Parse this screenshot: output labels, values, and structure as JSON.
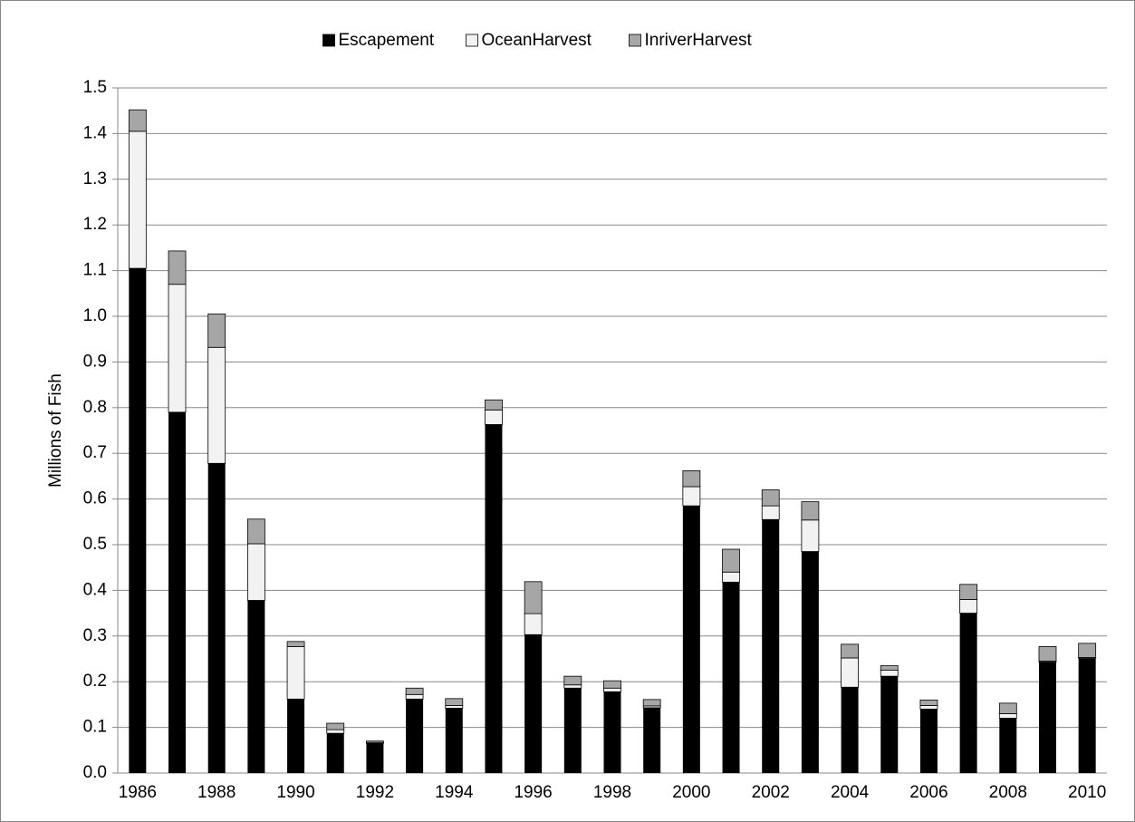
{
  "chart_data": {
    "type": "stacked-bar",
    "y_label": "Millions of Fish",
    "categories": [
      "1986",
      null,
      "1988",
      null,
      "1990",
      null,
      "1992",
      null,
      "1994",
      null,
      "1996",
      null,
      "1998",
      null,
      "2000",
      null,
      "2002",
      null,
      "2004",
      null,
      "2006",
      null,
      "2008",
      null,
      "2010"
    ],
    "series": [
      {
        "name": "Escapement",
        "color": "#000000",
        "values": [
          1.105,
          0.79,
          0.678,
          0.378,
          0.162,
          0.087,
          0.065,
          0.162,
          0.142,
          0.763,
          0.303,
          0.186,
          0.178,
          0.143,
          0.585,
          0.418,
          0.555,
          0.485,
          0.188,
          0.212,
          0.14,
          0.35,
          0.12,
          0.243,
          0.251
        ]
      },
      {
        "name": "OceanHarvest",
        "color": "#f2f2f2",
        "values": [
          0.3,
          0.28,
          0.254,
          0.124,
          0.115,
          0.008,
          0.002,
          0.01,
          0.006,
          0.032,
          0.046,
          0.007,
          0.008,
          0.004,
          0.042,
          0.022,
          0.03,
          0.069,
          0.064,
          0.013,
          0.008,
          0.03,
          0.01,
          0.002,
          0.002
        ]
      },
      {
        "name": "InriverHarvest",
        "color": "#a6a6a6",
        "values": [
          0.047,
          0.073,
          0.073,
          0.054,
          0.011,
          0.014,
          0.003,
          0.014,
          0.015,
          0.022,
          0.07,
          0.019,
          0.016,
          0.014,
          0.035,
          0.05,
          0.035,
          0.04,
          0.03,
          0.01,
          0.012,
          0.033,
          0.023,
          0.032,
          0.031
        ]
      }
    ],
    "ylim": [
      0,
      1.5
    ],
    "yticks": [
      {
        "value": 0,
        "label": "0.0"
      },
      0.1,
      0.2,
      0.3,
      0.4,
      0.5,
      0.6,
      0.7,
      0.8,
      0.9,
      {
        "value": 1,
        "label": "1.0"
      },
      1.1,
      1.2,
      1.3,
      1.4,
      1.5
    ],
    "grid": true,
    "legend": "top"
  }
}
